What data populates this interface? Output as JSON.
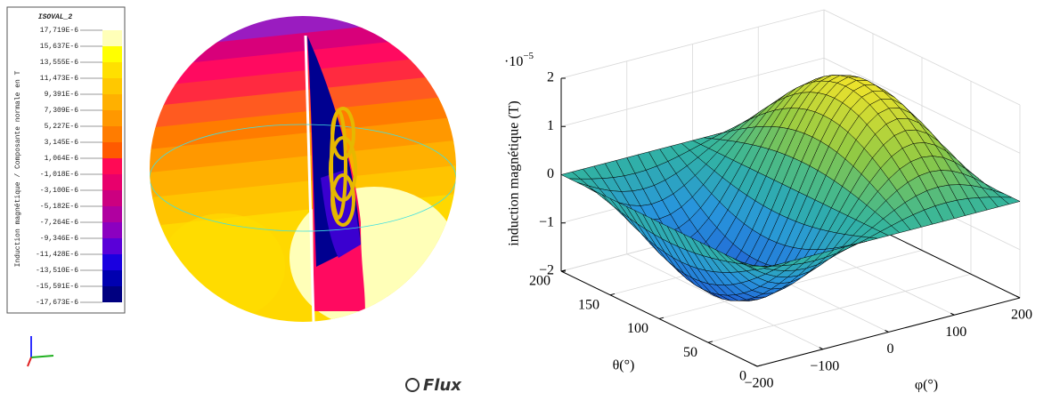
{
  "left_panel": {
    "legend_title": "ISOVAL_2",
    "legend_axis_label": "Induction magnétique / Composante normale en T",
    "legend_labels": [
      "17,719E-6",
      "15,637E-6",
      "13,555E-6",
      "11,473E-6",
      "9,391E-6",
      "7,309E-6",
      "5,227E-6",
      "3,145E-6",
      "1,064E-6",
      "-1,018E-6",
      "-3,100E-6",
      "-5,182E-6",
      "-7,264E-6",
      "-9,346E-6",
      "-11,428E-6",
      "-13,510E-6",
      "-15,591E-6",
      "-17,673E-6"
    ],
    "legend_colors": [
      "#ffffb8",
      "#ffff00",
      "#ffe000",
      "#ffc800",
      "#ffb000",
      "#ff9800",
      "#ff7c00",
      "#ff5a00",
      "#ff0a55",
      "#e8006c",
      "#cc0080",
      "#b000a0",
      "#8c00c0",
      "#5a00d8",
      "#1a00e0",
      "#0000b0",
      "#000080"
    ],
    "brand": "Flux"
  },
  "right_plot": {
    "multiplier": "·10",
    "multiplier_exp": "−5",
    "z_label": "induction magnétique (T)",
    "theta_label": "θ(°)",
    "phi_label": "φ(°)",
    "z_lim": [
      -2,
      2
    ],
    "theta_lim": [
      0,
      200
    ],
    "phi_lim": [
      -200,
      200
    ],
    "z_ticks": [
      {
        "value": -2,
        "label": "−2"
      },
      {
        "value": -1,
        "label": "−1"
      },
      0,
      1,
      2
    ],
    "theta_ticks": [
      0,
      50,
      100,
      150,
      200
    ],
    "phi_ticks": [
      {
        "value": -200,
        "label": "−200"
      },
      {
        "value": -100,
        "label": "−100"
      },
      0,
      100,
      200
    ]
  }
}
